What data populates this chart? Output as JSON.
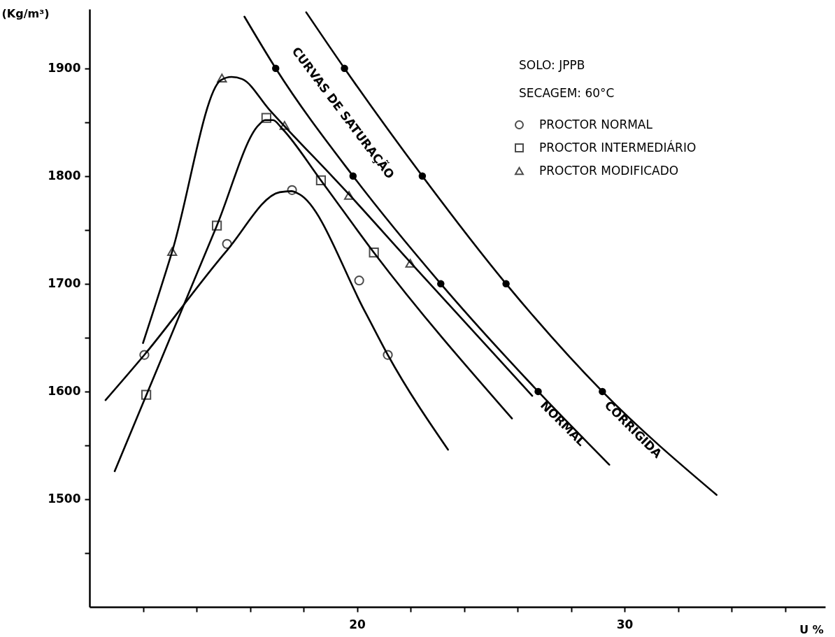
{
  "chart_data": {
    "type": "scatter",
    "xlabel": "U %",
    "ylabel": "(Kg/m³)",
    "xlim": [
      10,
      37.5
    ],
    "ylim": [
      1400,
      1955
    ],
    "xticks": [
      {
        "value": 12,
        "label": null
      },
      {
        "value": 14,
        "label": null
      },
      {
        "value": 16,
        "label": null
      },
      {
        "value": 18,
        "label": null
      },
      20,
      {
        "value": 22,
        "label": null
      },
      {
        "value": 24,
        "label": null
      },
      {
        "value": 26,
        "label": null
      },
      {
        "value": 28,
        "label": null
      },
      30,
      {
        "value": 32,
        "label": null
      },
      {
        "value": 34,
        "label": null
      },
      {
        "value": 36,
        "label": null
      }
    ],
    "yticks": [
      {
        "value": 1450,
        "label": null
      },
      1500,
      {
        "value": 1550,
        "label": null
      },
      1600,
      {
        "value": 1650,
        "label": null
      },
      1700,
      {
        "value": 1750,
        "label": null
      },
      1800,
      {
        "value": 1850,
        "label": null
      },
      1900
    ],
    "grid": false,
    "legend": "top right",
    "series": [
      {
        "name": "PROCTOR NORMAL",
        "marker": "circle",
        "color": "#000000",
        "x": [
          12.05,
          15.14,
          17.57,
          20.08,
          21.15
        ],
        "values": [
          1634,
          1737,
          1787,
          1703,
          1634
        ]
      },
      {
        "name": "PROCTOR INTERMEDIÁRIO",
        "marker": "square",
        "color": "#000000",
        "x": [
          12.12,
          14.76,
          16.61,
          18.65,
          20.63
        ],
        "values": [
          1597,
          1754,
          1854,
          1796,
          1729
        ]
      },
      {
        "name": "PROCTOR MODIFICADO",
        "marker": "triangle",
        "color": "#000000",
        "x": [
          13.09,
          14.95,
          17.29,
          19.7,
          21.99
        ],
        "values": [
          1730,
          1891,
          1847,
          1782,
          1719
        ]
      },
      {
        "type": "line",
        "color": "#000000",
        "x": [
          10.6,
          12.05,
          15.14,
          17.11,
          17.55,
          17.85,
          20.3,
          21.15,
          23.4
        ],
        "values": [
          1592,
          1634,
          1731,
          1785,
          1786,
          1783,
          1674,
          1634,
          1546
        ]
      },
      {
        "type": "line",
        "color": "#000000",
        "x": [
          10.94,
          14.76,
          16.31,
          16.56,
          16.86,
          17.2,
          18.65,
          20.63,
          25.79
        ],
        "values": [
          1526,
          1754,
          1847,
          1852,
          1852,
          1844,
          1796,
          1729,
          1575
        ]
      },
      {
        "type": "line",
        "color": "#000000",
        "x": [
          12.0,
          13.09,
          14.91,
          15.31,
          15.71,
          16.71,
          19.7,
          21.99,
          26.55
        ],
        "values": [
          1645,
          1730,
          1889,
          1892,
          1890,
          1862,
          1783,
          1720,
          1596
        ]
      },
      {
        "type": "line",
        "color": "#000000",
        "x": [
          15.79,
          16.96,
          19.85,
          23.13,
          26.77,
          29.43
        ],
        "values": [
          1948,
          1900,
          1800,
          1700,
          1600,
          1532
        ]
      },
      {
        "type": "line",
        "color": "#000000",
        "x": [
          18.1,
          19.53,
          22.44,
          25.57,
          29.17,
          33.44
        ],
        "values": [
          1952,
          1900,
          1800,
          1700,
          1600,
          1504
        ]
      },
      {
        "marker": "circle",
        "color": "#000000",
        "x": [
          16.96,
          19.85,
          23.13,
          26.77,
          19.53,
          22.44,
          25.57,
          29.17
        ],
        "values": [
          1900,
          1800,
          1700,
          1600,
          1900,
          1800,
          1700,
          1600
        ]
      }
    ],
    "annotations": [
      "SOLO: JPPB",
      "SECAGEM: 60°C",
      "CURVAS DE SATURAÇÃO",
      {
        "text": "NORMAL",
        "x": 26.77,
        "y": 1600
      },
      {
        "text": "CORRIGIDA",
        "x": 29.17,
        "y": 1600
      }
    ]
  }
}
